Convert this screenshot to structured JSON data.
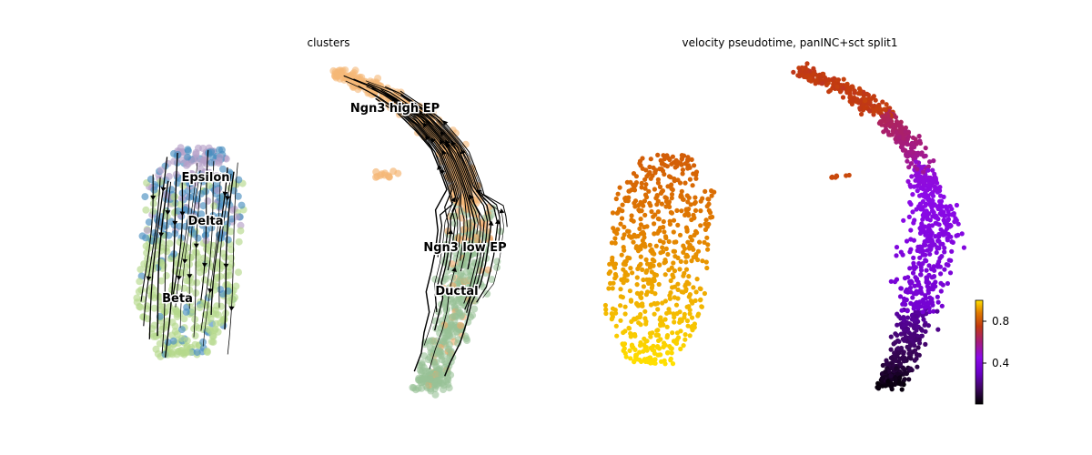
{
  "chart_data": [
    {
      "type": "scatter",
      "title": "clusters",
      "subtype": "umap embedding with velocity streamlines",
      "axes_visible": false,
      "legend": "on data",
      "clusters": [
        {
          "name": "Ngn3 high EP",
          "color": "#f5b877"
        },
        {
          "name": "Ngn3 low EP",
          "color": "#f0a868"
        },
        {
          "name": "Ductal",
          "color": "#97c196"
        },
        {
          "name": "Epsilon",
          "color": "#b59fc8"
        },
        {
          "name": "Delta",
          "color": "#4a8fc0"
        },
        {
          "name": "Beta",
          "color": "#b5d98c"
        }
      ],
      "labels": [
        "Ngn3 high EP",
        "Ngn3 low EP",
        "Ductal",
        "Epsilon",
        "Delta",
        "Beta"
      ]
    },
    {
      "type": "scatter",
      "title": "velocity pseudotime, panINC+sct split1",
      "subtype": "umap embedding colored by continuous value",
      "axes_visible": false,
      "colormap": "gnuplot",
      "colorbar": {
        "range": [
          0,
          1
        ],
        "ticks": [
          "0.8",
          "0.4"
        ],
        "tick_values": [
          0.8,
          0.4
        ]
      },
      "regions": [
        {
          "region": "top arm",
          "pseudotime": 0.8
        },
        {
          "region": "upper bend",
          "pseudotime": 0.6
        },
        {
          "region": "middle",
          "pseudotime": 0.4
        },
        {
          "region": "lower",
          "pseudotime": 0.2
        },
        {
          "region": "bottom tip",
          "pseudotime": 0.05
        },
        {
          "region": "left blob top",
          "pseudotime": 0.85
        },
        {
          "region": "left blob bottom",
          "pseudotime": 1.0
        }
      ]
    }
  ],
  "colors": {
    "ngn3_high": "#f5b877",
    "ngn3_low": "#f0a868",
    "ductal": "#97c196",
    "epsilon": "#b59fc8",
    "delta": "#4a8fc0",
    "beta": "#b5d98c"
  }
}
